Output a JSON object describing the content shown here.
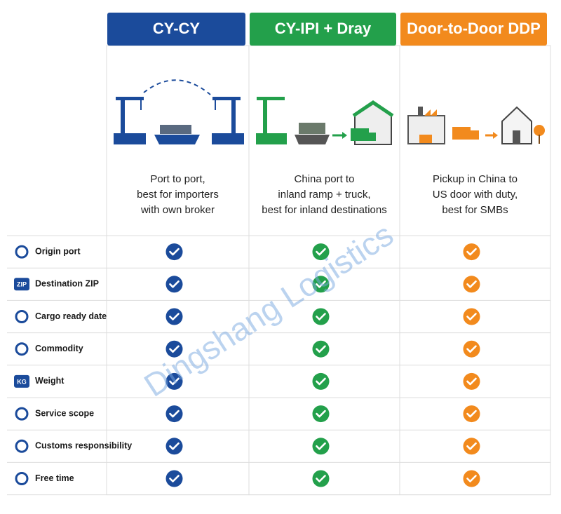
{
  "columns": [
    {
      "title": "CY-CY",
      "description": [
        "Port to port,",
        "best for importers",
        "with own broker"
      ],
      "color": "#1b4b9b"
    },
    {
      "title": "CY-IPI + Dray",
      "description": [
        "China port to",
        "inland ramp + truck,",
        "best for inland destinations"
      ],
      "color": "#23a04b"
    },
    {
      "title": "Door-to-Door DDP",
      "description": [
        "Pickup in China to",
        "US door with duty,",
        "best for SMBs"
      ],
      "color": "#f28a1d"
    }
  ],
  "rows": [
    {
      "label": "Origin port"
    },
    {
      "label": "Destination ZIP",
      "icon_text": "ZIP"
    },
    {
      "label": "Cargo ready date"
    },
    {
      "label": "Commodity"
    },
    {
      "label": "Weight",
      "icon_text": "KG"
    },
    {
      "label": "Service scope"
    },
    {
      "label": "Customs responsibility"
    },
    {
      "label": "Free time"
    }
  ],
  "watermark": "Dingshang Logistics"
}
